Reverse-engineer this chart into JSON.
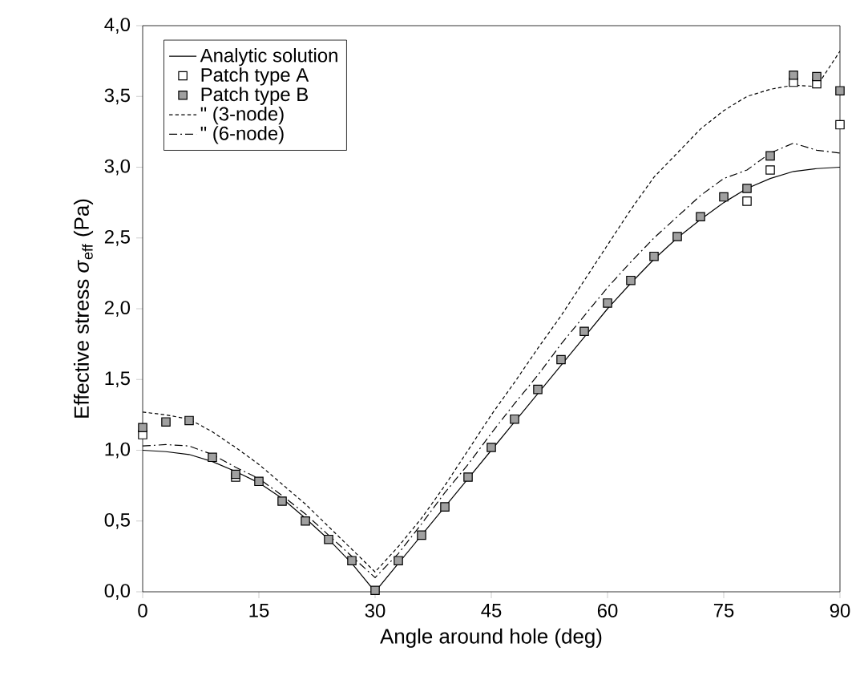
{
  "chart_data": {
    "type": "line",
    "xlabel": "Angle around hole (deg)",
    "ylabel": "Effective stress *σ*$_{eff}$ (Pa)",
    "x": [
      0,
      3,
      6,
      9,
      12,
      15,
      18,
      21,
      24,
      27,
      30,
      33,
      36,
      39,
      42,
      45,
      48,
      51,
      54,
      57,
      60,
      63,
      66,
      69,
      72,
      75,
      78,
      81,
      84,
      87,
      90
    ],
    "xlim": [
      0,
      90
    ],
    "xticks": [
      0,
      15,
      30,
      45,
      60,
      75,
      90
    ],
    "ylim": [
      0,
      4
    ],
    "yticks": [
      {
        "value": 0,
        "label": "0,0"
      },
      {
        "value": 0.5,
        "label": "0,5"
      },
      {
        "value": 1,
        "label": "1,0"
      },
      {
        "value": 1.5,
        "label": "1,5"
      },
      {
        "value": 2,
        "label": "2,0"
      },
      {
        "value": 2.5,
        "label": "2,5"
      },
      {
        "value": 3,
        "label": "3,0"
      },
      {
        "value": 3.5,
        "label": "3,5"
      },
      {
        "value": 4,
        "label": "4,0"
      }
    ],
    "grid": false,
    "legend": "top left",
    "series": [
      {
        "name": "Analytic solution",
        "line_style": "solid",
        "color": "#000000",
        "values": [
          1.0,
          0.99,
          0.97,
          0.92,
          0.85,
          0.77,
          0.66,
          0.52,
          0.37,
          0.2,
          0.0,
          0.2,
          0.4,
          0.6,
          0.8,
          1.0,
          1.2,
          1.4,
          1.6,
          1.8,
          2.0,
          2.18,
          2.35,
          2.5,
          2.63,
          2.75,
          2.85,
          2.92,
          2.97,
          2.99,
          3.0
        ]
      },
      {
        "name": "Patch type A",
        "type": "scatter",
        "marker": "square",
        "color": "#ffffff",
        "values": [
          1.11,
          null,
          null,
          null,
          0.81,
          null,
          null,
          null,
          null,
          null,
          null,
          null,
          null,
          null,
          null,
          null,
          null,
          null,
          null,
          null,
          null,
          null,
          null,
          null,
          null,
          null,
          2.76,
          2.98,
          3.6,
          3.59,
          3.3
        ]
      },
      {
        "name": "Patch type B",
        "type": "scatter",
        "marker": "square",
        "color": "#a0a0a0",
        "values": [
          1.16,
          1.2,
          1.21,
          0.95,
          0.83,
          0.78,
          0.64,
          0.5,
          0.37,
          0.22,
          0.01,
          0.22,
          0.4,
          0.6,
          0.81,
          1.02,
          1.22,
          1.43,
          1.64,
          1.84,
          2.04,
          2.2,
          2.37,
          2.51,
          2.65,
          2.79,
          2.85,
          3.08,
          3.65,
          3.64,
          3.54
        ]
      },
      {
        "name": "\"          (3-node)",
        "line_style": "dashed",
        "color": "#000000",
        "values": [
          1.27,
          1.25,
          1.22,
          1.13,
          1.02,
          0.9,
          0.76,
          0.62,
          0.46,
          0.3,
          0.14,
          0.32,
          0.52,
          0.75,
          1.0,
          1.25,
          1.48,
          1.72,
          1.95,
          2.2,
          2.45,
          2.7,
          2.93,
          3.1,
          3.27,
          3.4,
          3.5,
          3.55,
          3.58,
          3.57,
          3.82
        ]
      },
      {
        "name": "\"          (6-node)",
        "line_style": "dashdot",
        "color": "#000000",
        "values": [
          1.03,
          1.04,
          1.03,
          0.97,
          0.88,
          0.8,
          0.68,
          0.55,
          0.4,
          0.25,
          0.1,
          0.27,
          0.48,
          0.7,
          0.9,
          1.12,
          1.33,
          1.53,
          1.75,
          1.95,
          2.15,
          2.33,
          2.5,
          2.65,
          2.8,
          2.92,
          2.98,
          3.1,
          3.17,
          3.12,
          3.1
        ]
      }
    ]
  }
}
